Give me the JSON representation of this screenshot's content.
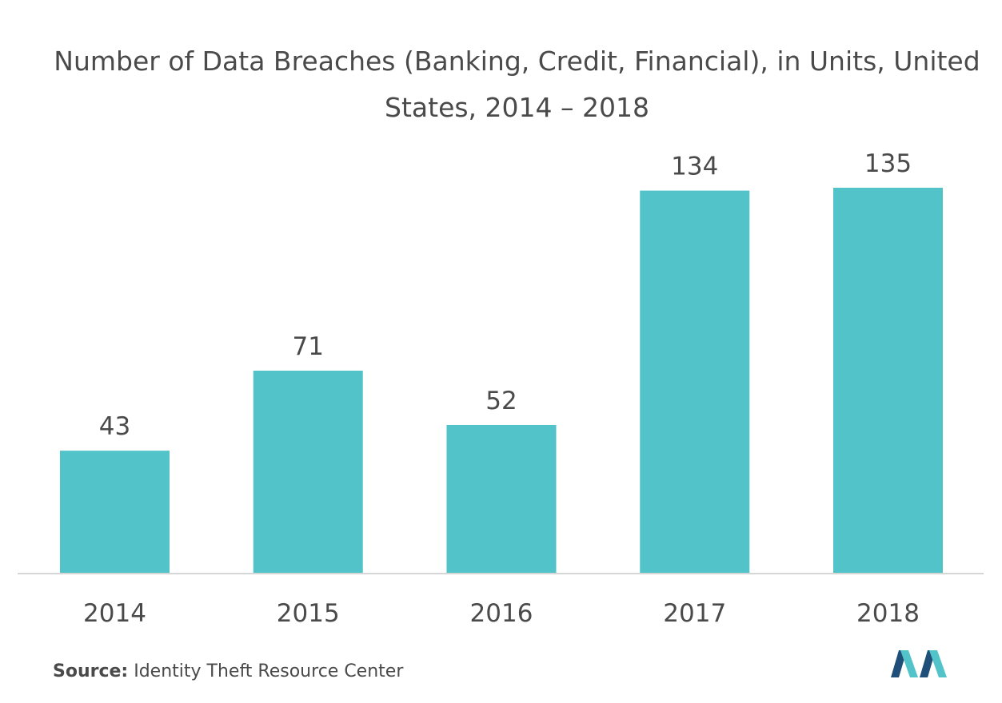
{
  "chart_data": {
    "type": "bar",
    "title": "Number of Data Breaches (Banking, Credit, Financial), in Units, United States, 2014 – 2018",
    "categories": [
      "2014",
      "2015",
      "2016",
      "2017",
      "2018"
    ],
    "values": [
      43,
      71,
      52,
      134,
      135
    ],
    "data_labels": [
      "43",
      "71",
      "52",
      "134",
      "135"
    ],
    "xlabel": "",
    "ylabel": "",
    "ylim": [
      0,
      135
    ],
    "grid": false,
    "legend": "none",
    "bar_color": "#52c3c9",
    "axis_color": "#d6d6d6"
  },
  "source": {
    "prefix": "Source:",
    "text": " Identity Theft Resource Center"
  },
  "logo": {
    "icon": "mordor-intelligence-logo",
    "colors": [
      "#1f4e79",
      "#52c3c9"
    ]
  }
}
